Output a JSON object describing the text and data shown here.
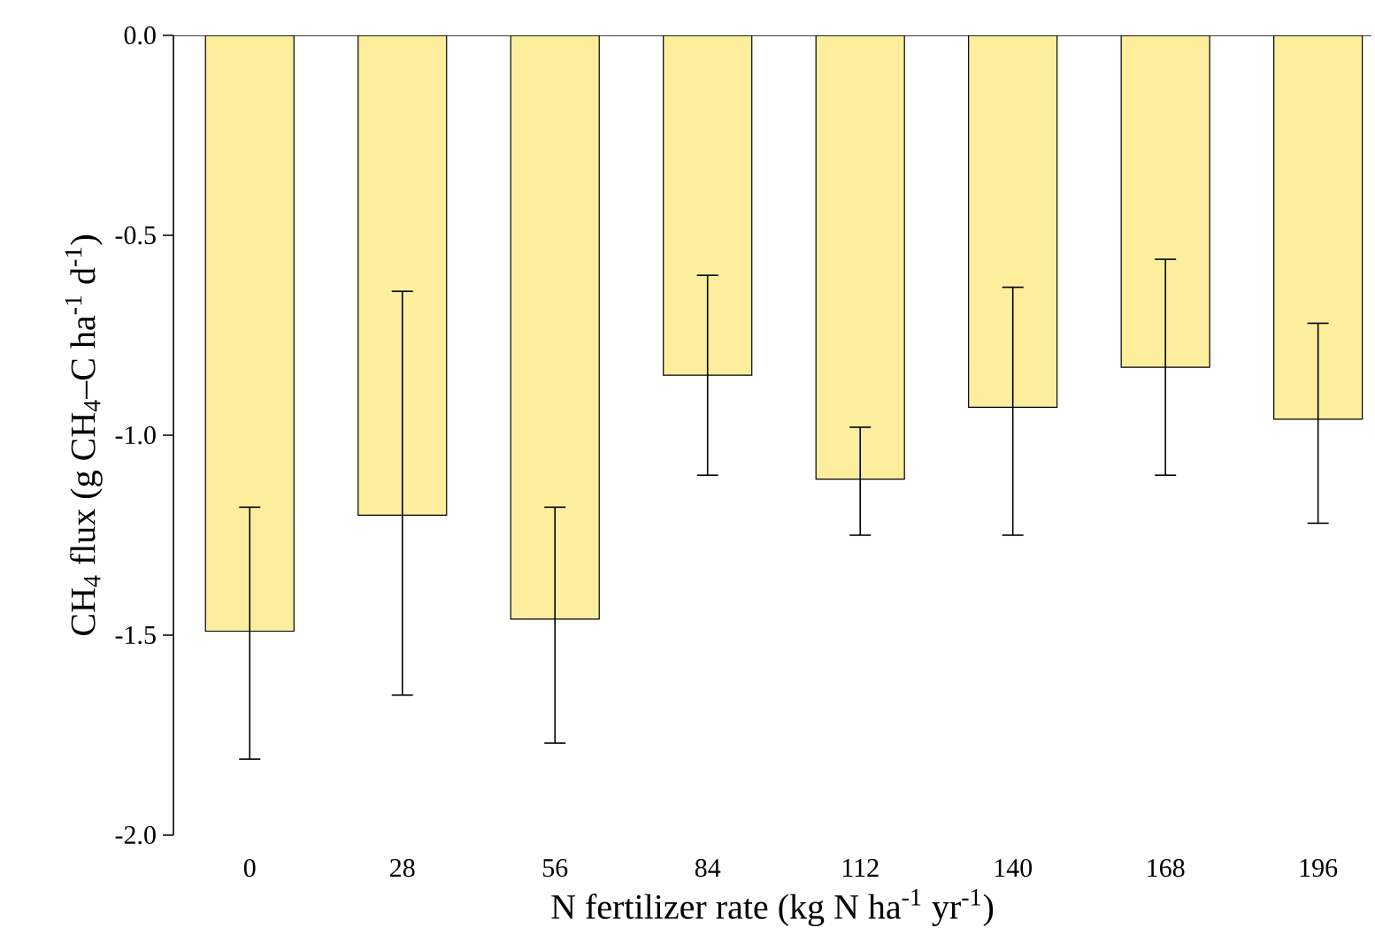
{
  "chart_data": {
    "type": "bar",
    "xlabel": "N fertilizer rate (kg N ha$^{-1}$ yr$^{-1}$)",
    "ylabel": "CH$_{4}$ flux (g CH$_{4}$–C ha$^{-1}$ d$^{-1}$)",
    "categories": [
      "0",
      "28",
      "56",
      "84",
      "112",
      "140",
      "168",
      "196"
    ],
    "values": [
      -1.49,
      -1.2,
      -1.46,
      -0.85,
      -1.11,
      -0.93,
      -0.83,
      -0.96
    ],
    "errors": [
      [
        -1.81,
        -1.18
      ],
      [
        -1.65,
        -0.64
      ],
      [
        -1.77,
        -1.18
      ],
      [
        -1.1,
        -0.6
      ],
      [
        -1.25,
        -0.98
      ],
      [
        -1.25,
        -0.63
      ],
      [
        -1.1,
        -0.56
      ],
      [
        -1.22,
        -0.72
      ]
    ],
    "color": "#fcee9c",
    "ylim": [
      -2.0,
      0.0
    ],
    "yticks": [
      {
        "value": -2.0,
        "label": "-2.0"
      },
      {
        "value": -1.5,
        "label": "-1.5"
      },
      {
        "value": -1.0,
        "label": "-1.0"
      },
      {
        "value": -0.5,
        "label": "-0.5"
      },
      {
        "value": 0.0,
        "label": "0.0"
      }
    ],
    "grid": false
  }
}
